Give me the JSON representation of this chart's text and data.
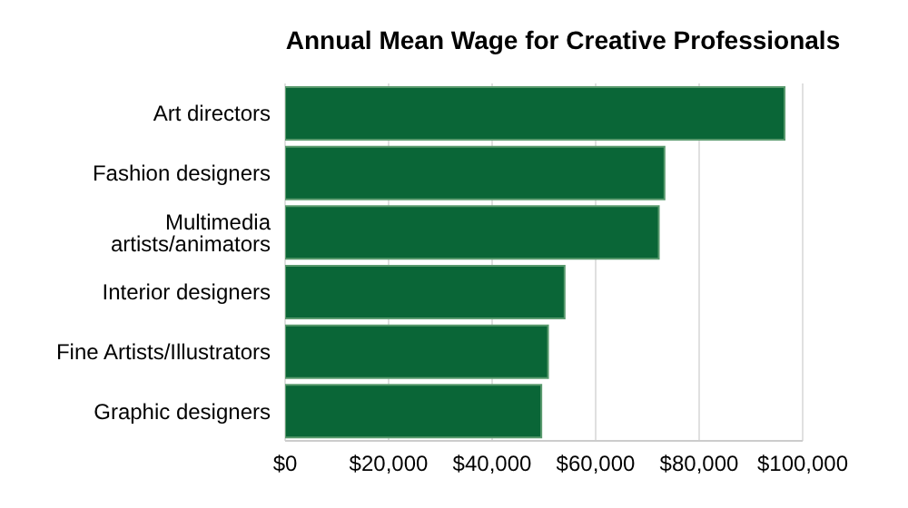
{
  "chart_data": {
    "type": "bar",
    "orientation": "horizontal",
    "title": "Annual Mean Wage for Creative Professionals",
    "categories": [
      "Art directors",
      "Fashion designers",
      "Multimedia artists/animators",
      "Interior designers",
      "Fine Artists/Illustrators",
      "Graphic designers"
    ],
    "values": [
      96500,
      73300,
      72200,
      54000,
      50800,
      49500
    ],
    "color": "#0a6637",
    "xlim": [
      0,
      100000
    ],
    "xticks": [
      {
        "value": 0,
        "label": "$0"
      },
      {
        "value": 20000,
        "label": "$20,000"
      },
      {
        "value": 40000,
        "label": "$40,000"
      },
      {
        "value": 60000,
        "label": "$60,000"
      },
      {
        "value": 80000,
        "label": "$80,000"
      },
      {
        "value": 100000,
        "label": "$100,000"
      }
    ],
    "grid": "x"
  }
}
